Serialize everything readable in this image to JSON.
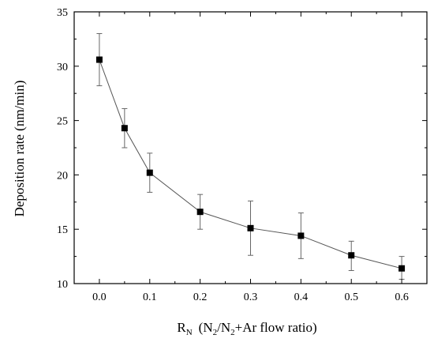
{
  "chart_data": {
    "type": "line",
    "title": "",
    "xlabel": {
      "main": "R",
      "main_sub": "N",
      "paren_open": "(N",
      "paren_sub1": "2",
      "slash": "/N",
      "paren_sub2": "2",
      "rest": "+Ar flow ratio)"
    },
    "ylabel": "Deposition rate (nm/min)",
    "xlim": [
      -0.05,
      0.65
    ],
    "ylim": [
      10,
      35
    ],
    "xticks": [
      0.0,
      0.1,
      0.2,
      0.3,
      0.4,
      0.5,
      0.6
    ],
    "xtick_labels": [
      "0.0",
      "0.1",
      "0.2",
      "0.3",
      "0.4",
      "0.5",
      "0.6"
    ],
    "yticks": [
      10,
      15,
      20,
      25,
      30,
      35
    ],
    "ytick_labels": [
      "10",
      "15",
      "20",
      "25",
      "30",
      "35"
    ],
    "marker": "square",
    "error_bars": true,
    "grid": false,
    "legend": "none",
    "series": [
      {
        "x": [
          0.0,
          0.05,
          0.1,
          0.2,
          0.3,
          0.4,
          0.5,
          0.6
        ],
        "y": [
          30.6,
          24.3,
          20.2,
          16.6,
          15.1,
          14.4,
          12.6,
          11.4
        ],
        "yerr_low": [
          28.2,
          22.5,
          18.4,
          15.0,
          12.6,
          12.3,
          11.2,
          10.4
        ],
        "yerr_high": [
          33.0,
          26.1,
          22.0,
          18.2,
          17.6,
          16.5,
          13.9,
          12.5
        ]
      }
    ],
    "colors": {
      "line": "#555555",
      "marker": "#000000",
      "axis": "#000000"
    }
  }
}
